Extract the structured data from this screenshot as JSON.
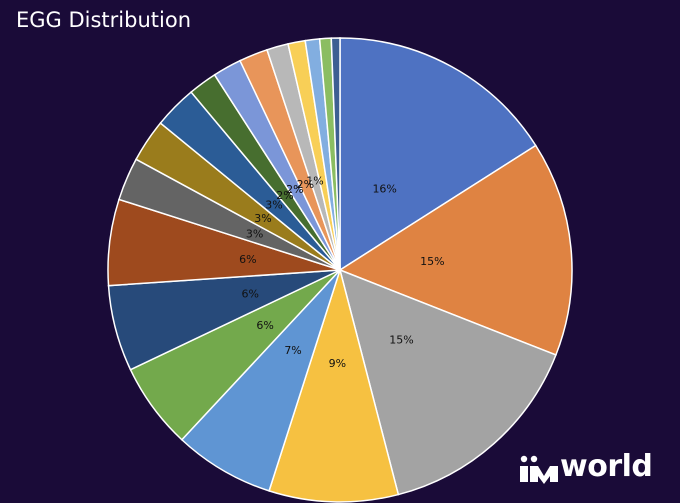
{
  "chart_data": {
    "type": "pie",
    "title": "EGG Distribution",
    "start_angle_deg": 0,
    "direction": "clockwise",
    "slices": [
      {
        "value": 16,
        "label": "16%",
        "color": "#4e72c2"
      },
      {
        "value": 15,
        "label": "15%",
        "color": "#df8342"
      },
      {
        "value": 15,
        "label": "15%",
        "color": "#a3a3a3"
      },
      {
        "value": 9,
        "label": "9%",
        "color": "#f6c141"
      },
      {
        "value": 7,
        "label": "7%",
        "color": "#5f95d3"
      },
      {
        "value": 6,
        "label": "6%",
        "color": "#73a94c"
      },
      {
        "value": 6,
        "label": "6%",
        "color": "#274a7a"
      },
      {
        "value": 6,
        "label": "6%",
        "color": "#9e4a1e"
      },
      {
        "value": 3,
        "label": "3%",
        "color": "#646464"
      },
      {
        "value": 3,
        "label": "3%",
        "color": "#9a7c1c"
      },
      {
        "value": 3,
        "label": "3%",
        "color": "#2b5c96"
      },
      {
        "value": 2,
        "label": "2%",
        "color": "#476e2f"
      },
      {
        "value": 2,
        "label": "2%",
        "color": "#7b96d8"
      },
      {
        "value": 2,
        "label": "2%",
        "color": "#e8955a"
      },
      {
        "value": 1.5,
        "label": "1%",
        "color": "#b8b8b8"
      },
      {
        "value": 1.2,
        "label": "",
        "color": "#f8cf57"
      },
      {
        "value": 1.0,
        "label": "",
        "color": "#82aee0"
      },
      {
        "value": 0.8,
        "label": "",
        "color": "#8bbd62"
      },
      {
        "value": 0.6,
        "label": "",
        "color": "#3d5f93"
      }
    ],
    "legend": "none"
  },
  "brand": {
    "logo_text": "world",
    "logo_color": "#ffffff"
  }
}
